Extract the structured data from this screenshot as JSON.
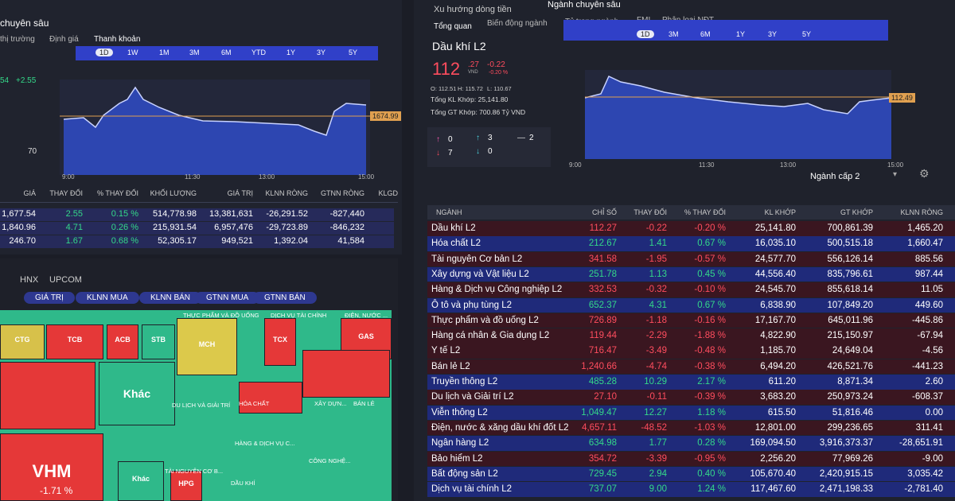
{
  "left_panel": {
    "tab": "chuyên sâu",
    "subtabs": [
      "thị trường",
      "Định giá",
      "Thanh khoản"
    ],
    "ranges": [
      "1D",
      "1W",
      "1M",
      "3M",
      "6M",
      "YTD",
      "1Y",
      "3Y",
      "5Y"
    ],
    "stats": [
      "54",
      "+2.55",
      "70"
    ],
    "chart_price": "1674.99",
    "chart_times": [
      "9:00",
      "11:30",
      "13:00",
      "15:00"
    ],
    "table": {
      "columns": [
        "GIÁ",
        "THAY ĐỔI",
        "% THAY ĐỔI",
        "KHỐI LƯỢNG",
        "GIÁ TRỊ",
        "KLNN RÒNG",
        "GTNN RÒNG",
        "KLGD"
      ],
      "rows": [
        [
          "1,677.54",
          "2.55",
          "0.15 %",
          "514,778.98",
          "13,381,631",
          "-26,291.52",
          "-827,440"
        ],
        [
          "1,840.96",
          "4.71",
          "0.26 %",
          "215,931.54",
          "6,957,476",
          "-29,723.89",
          "-846,232"
        ],
        [
          "246.70",
          "1.67",
          "0.68 %",
          "52,305.17",
          "949,521",
          "1,392.04",
          "41,584"
        ]
      ]
    }
  },
  "heatmap": {
    "exchanges": [
      "HNX",
      "UPCOM"
    ],
    "filters": [
      "GIÁ TRỊ",
      "KLNN MUA",
      "KLNN BÁN",
      "GTNN MUA",
      "GTNN BÁN"
    ],
    "cells": [
      "CTG",
      "TCB",
      "ACB",
      "STB",
      "MCH",
      "TCX",
      "GAS",
      "Khác",
      "VHM",
      "-1.71 %",
      "Khác",
      "HPG"
    ],
    "sectors": [
      "THỰC PHẨM VÀ ĐỒ UỐNG",
      "DỊCH VỤ TÀI CHÍNH",
      "ĐIỆN, NƯỚC ...",
      "DU LỊCH VÀ GIẢI TRÍ",
      "HÓA CHẤT",
      "XÂY DỰN...",
      "BÁN LẺ",
      "HÀNG & DỊCH VỤ C...",
      "CÔNG NGHỆ...",
      "TÀI NGUYÊN CƠ B...",
      "DẦU KHÍ"
    ]
  },
  "right_panel": {
    "tabs": [
      "Xu hướng dòng tiền",
      "Ngành chuyên sâu"
    ],
    "subtabs": [
      "Tổng quan",
      "Biến động ngành",
      "Tỷ trọng ngành",
      "FMI",
      "Phân loại NĐT"
    ],
    "ranges": [
      "1D",
      "3M",
      "6M",
      "1Y",
      "3Y",
      "5Y"
    ],
    "title": "Dầu khí L2",
    "price_int": "112",
    "price_dec": ".27",
    "currency": "VND",
    "change": "-0.22",
    "change_pct": "-0.20 %",
    "ohl": [
      "O: 112.51",
      "H: 115.72",
      "L: 110.67"
    ],
    "total_volume": "Tổng KL Khớp: 25,141.80",
    "total_value": "Tổng GT Khớp: 700.86 Tỷ VND",
    "counts": [
      "0",
      "3",
      "2",
      "7",
      "0"
    ],
    "chart_price": "112.49",
    "chart_times": [
      "9:00",
      "11:30",
      "13:00",
      "15:00"
    ],
    "level_select": "Ngành cấp 2",
    "table": {
      "columns": [
        "NGÀNH",
        "CHỈ SỐ",
        "THAY ĐỔI",
        "% THAY ĐỔI",
        "KL KHỚP",
        "GT KHỚP",
        "KLNN RÒNG"
      ],
      "rows": [
        [
          "Dầu khí L2",
          "112.27",
          "-0.22",
          "-0.20 %",
          "25,141.80",
          "700,861.39",
          "1,465.20"
        ],
        [
          "Hóa chất L2",
          "212.67",
          "1.41",
          "0.67 %",
          "16,035.10",
          "500,515.18",
          "1,660.47"
        ],
        [
          "Tài nguyên Cơ bản L2",
          "341.58",
          "-1.95",
          "-0.57 %",
          "24,577.70",
          "556,126.14",
          "885.56"
        ],
        [
          "Xây dựng và Vật liệu L2",
          "251.78",
          "1.13",
          "0.45 %",
          "44,556.40",
          "835,796.61",
          "987.44"
        ],
        [
          "Hàng & Dịch vụ Công nghiệp L2",
          "332.53",
          "-0.32",
          "-0.10 %",
          "24,545.70",
          "855,618.14",
          "11.05"
        ],
        [
          "Ô tô và phụ tùng L2",
          "652.37",
          "4.31",
          "0.67 %",
          "6,838.90",
          "107,849.20",
          "449.60"
        ],
        [
          "Thực phẩm và đồ uống L2",
          "726.89",
          "-1.18",
          "-0.16 %",
          "17,167.70",
          "645,011.96",
          "-445.86"
        ],
        [
          "Hàng cá nhân & Gia dụng L2",
          "119.44",
          "-2.29",
          "-1.88 %",
          "4,822.90",
          "215,150.97",
          "-67.94"
        ],
        [
          "Y tế L2",
          "716.47",
          "-3.49",
          "-0.48 %",
          "1,185.70",
          "24,649.04",
          "-4.56"
        ],
        [
          "Bán lẻ L2",
          "1,240.66",
          "-4.74",
          "-0.38 %",
          "6,494.20",
          "426,521.76",
          "-441.23"
        ],
        [
          "Truyền thông L2",
          "485.28",
          "10.29",
          "2.17 %",
          "611.20",
          "8,871.34",
          "2.60"
        ],
        [
          "Du lịch và Giải trí L2",
          "27.10",
          "-0.11",
          "-0.39 %",
          "3,683.20",
          "250,973.24",
          "-608.37"
        ],
        [
          "Viễn thông L2",
          "1,049.47",
          "12.27",
          "1.18 %",
          "615.50",
          "51,816.46",
          "0.00"
        ],
        [
          "Điện, nước & xăng dầu khí đốt L2",
          "4,657.11",
          "-48.52",
          "-1.03 %",
          "12,801.00",
          "299,236.65",
          "311.41"
        ],
        [
          "Ngân hàng L2",
          "634.98",
          "1.77",
          "0.28 %",
          "169,094.50",
          "3,916,373.37",
          "-28,651.91"
        ],
        [
          "Bảo hiểm L2",
          "354.72",
          "-3.39",
          "-0.95 %",
          "2,256.20",
          "77,969.26",
          "-9.00"
        ],
        [
          "Bất động sản L2",
          "729.45",
          "2.94",
          "0.40 %",
          "105,670.40",
          "2,420,915.15",
          "3,035.42"
        ],
        [
          "Dịch vụ tài chính L2",
          "737.07",
          "9.00",
          "1.24 %",
          "117,467.60",
          "2,471,198.33",
          "-2,781.40"
        ]
      ]
    }
  }
}
